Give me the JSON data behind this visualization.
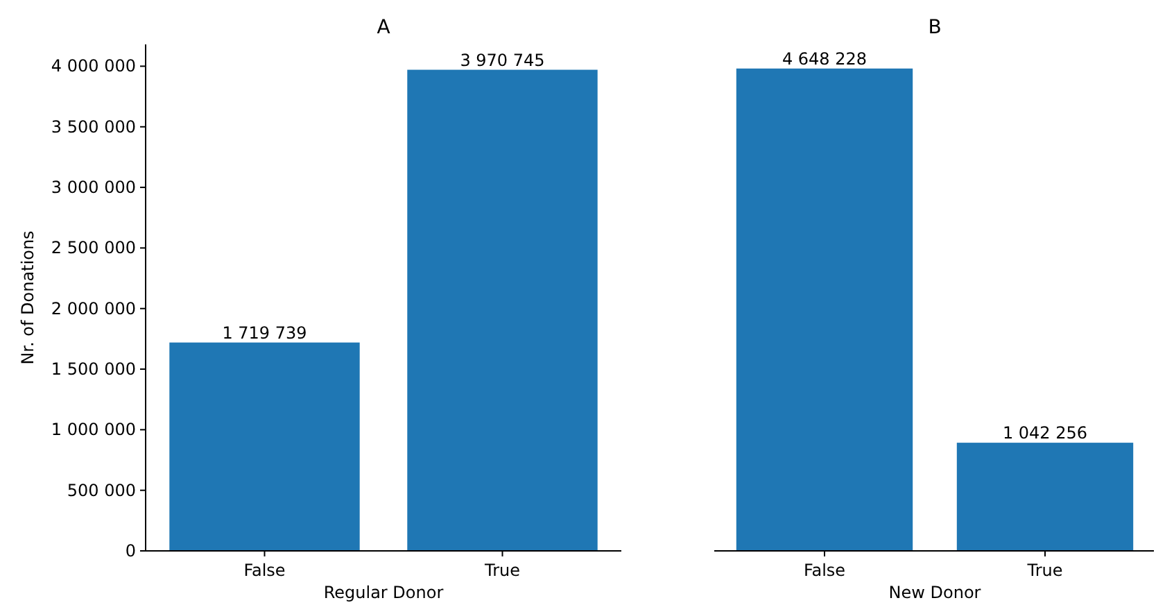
{
  "chart_data": [
    {
      "type": "bar",
      "title": "A",
      "xlabel": "Regular Donor",
      "ylabel": "Nr. of Donations",
      "categories": [
        "False",
        "True"
      ],
      "values": [
        1719739,
        3970745
      ],
      "color": "#1f77b4",
      "data_labels": true,
      "ylim": [
        0,
        4180000
      ],
      "yticks": [
        0,
        {
          "value": 500000,
          "label": "500 000"
        },
        {
          "value": 1000000,
          "label": "1 000 000"
        },
        {
          "value": 1500000,
          "label": "1 500 000"
        },
        {
          "value": 2000000,
          "label": "2 000 000"
        },
        {
          "value": 2500000,
          "label": "2 500 000"
        },
        {
          "value": 3000000,
          "label": "3 000 000"
        },
        {
          "value": 3500000,
          "label": "3 500 000"
        },
        {
          "value": 4000000,
          "label": "4 000 000"
        }
      ],
      "grid": false
    },
    {
      "type": "bar",
      "title": "B",
      "xlabel": "New Donor",
      "categories": [
        "False",
        "True"
      ],
      "values": [
        4648228,
        1042256
      ],
      "color": "#1f77b4",
      "data_labels": true,
      "tick_labels": "x",
      "grid": false
    }
  ]
}
